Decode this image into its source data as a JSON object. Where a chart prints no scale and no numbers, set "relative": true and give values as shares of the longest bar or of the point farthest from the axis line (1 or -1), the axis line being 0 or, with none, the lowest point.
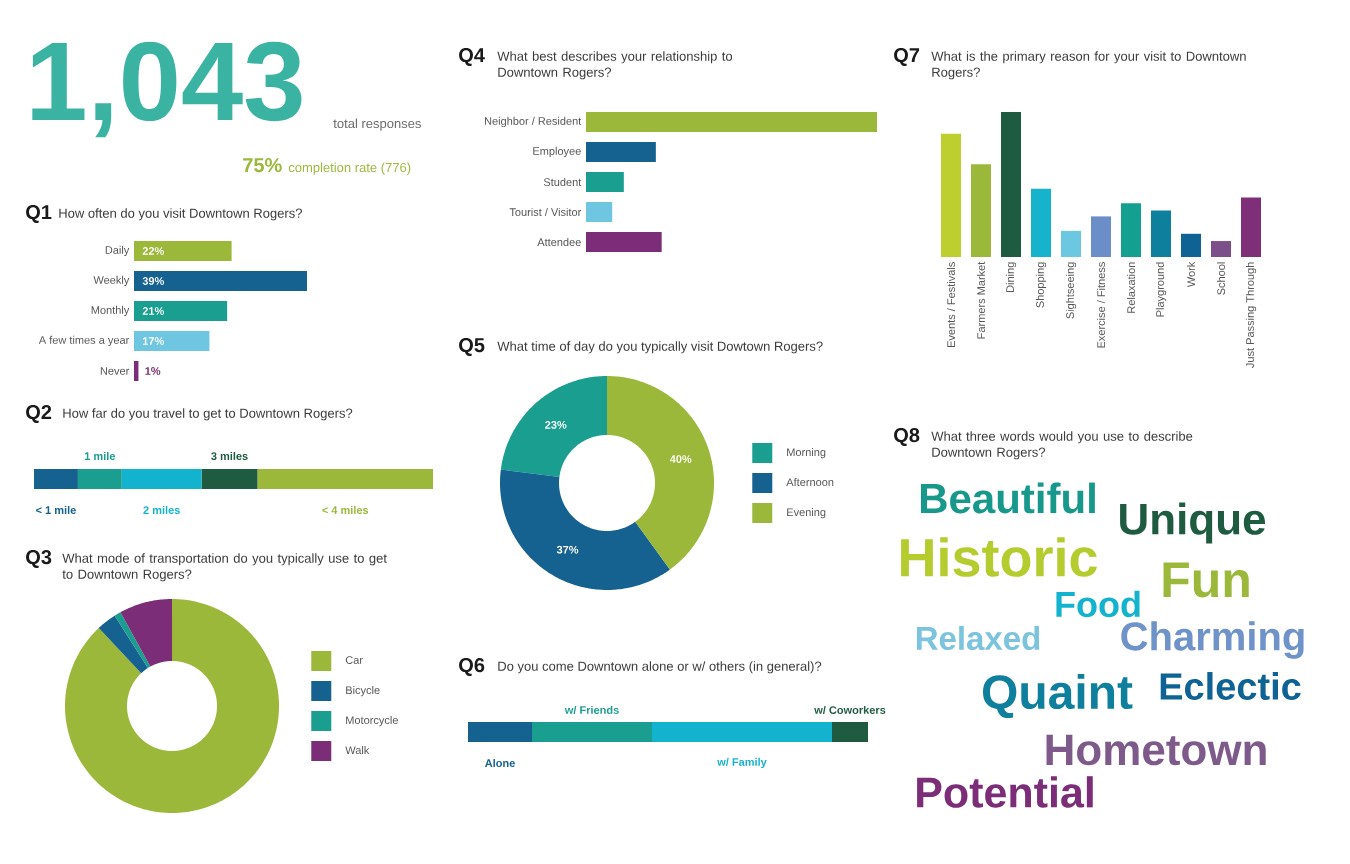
{
  "chart_data": [
    {
      "type": "other",
      "title": "1,043",
      "annotations": [
        "total responses",
        "75%",
        "completion rate (776)"
      ]
    },
    {
      "type": "bar",
      "orientation": "horizontal",
      "title": "Q1",
      "subtitle": "How often do you visit Downtown Rogers?",
      "categories": [
        "Daily",
        "Weekly",
        "Monthly",
        "A few times a year",
        "Never"
      ],
      "values": [
        22,
        39,
        21,
        17,
        1
      ],
      "colors": [
        "#9bb83a",
        "#15618f",
        "#1a9e8f",
        "#6fc6e0",
        "#7b2d78"
      ],
      "value_labels": [
        "22%",
        "39%",
        "21%",
        "17%",
        "1%"
      ]
    },
    {
      "type": "bar",
      "orientation": "horizontal",
      "stacked": true,
      "relative": true,
      "title": "Q2",
      "subtitle": "How far do you travel to get to Downtown Rogers?",
      "categories": [
        null
      ],
      "series": [
        {
          "name": "< 1 mile",
          "color": "#15618f",
          "values": [
            0.11
          ]
        },
        {
          "name": "1 mile",
          "color": "#1a9e8f",
          "values": [
            0.11
          ]
        },
        {
          "name": "2 miles",
          "color": "#13b3cf",
          "values": [
            0.2
          ]
        },
        {
          "name": "3 miles",
          "color": "#1e5b40",
          "values": [
            0.14
          ]
        },
        {
          "name": "< 4 miles",
          "color": "#9bb83a",
          "values": [
            0.44
          ]
        }
      ]
    },
    {
      "type": "donut",
      "title": "Q3",
      "subtitle": "What mode of transportation do you typically use to get to Downtown Rogers?",
      "categories": [
        "Car",
        "Bicycle",
        "Motorcycle",
        "Walk"
      ],
      "values": [
        88,
        3,
        1,
        8
      ],
      "colors": [
        "#9bb83a",
        "#15618f",
        "#1a9e8f",
        "#7b2d78"
      ],
      "legend": "right"
    },
    {
      "type": "bar",
      "orientation": "horizontal",
      "relative": true,
      "title": "Q4",
      "subtitle": "What best describes your relationship to Downtown Rogers?",
      "categories": [
        "Neighbor / Resident",
        "Employee",
        "Student",
        "Tourist / Visitor",
        "Attendee"
      ],
      "values": [
        1,
        0.24,
        0.13,
        0.09,
        0.26
      ],
      "colors": [
        "#9bb83a",
        "#15618f",
        "#1a9e8f",
        "#6fc6e0",
        "#7b2d78"
      ]
    },
    {
      "type": "donut",
      "title": "Q5",
      "subtitle": "What time of day do you typically visit Dowtown Rogers?",
      "categories": [
        "Morning",
        "Afternoon",
        "Evening"
      ],
      "values": [
        23,
        37,
        40
      ],
      "colors": [
        "#1a9e8f",
        "#15618f",
        "#9bb83a"
      ],
      "value_labels": [
        "23%",
        "37%",
        "40%"
      ],
      "legend": "right"
    },
    {
      "type": "bar",
      "orientation": "horizontal",
      "stacked": true,
      "relative": true,
      "title": "Q6",
      "subtitle": "Do you come Downtown alone or w/ others (in general)?",
      "categories": [
        null
      ],
      "series": [
        {
          "name": "Alone",
          "color": "#15618f",
          "values": [
            0.16
          ]
        },
        {
          "name": "w/ Friends",
          "color": "#1a9e8f",
          "values": [
            0.3
          ]
        },
        {
          "name": "w/ Family",
          "color": "#13b3cf",
          "values": [
            0.45
          ]
        },
        {
          "name": "w/ Coworkers",
          "color": "#1e5b40",
          "values": [
            0.09
          ]
        }
      ]
    },
    {
      "type": "bar",
      "relative": true,
      "title": "Q7",
      "subtitle": "What is the primary reason for your visit to Downtown Rogers?",
      "categories": [
        "Events / Festivals",
        "Farmers Market",
        "Dining",
        "Shopping",
        "Sightseeing",
        "Exercise / Fitness",
        "Relaxation",
        "Playground",
        "Work",
        "School",
        "Just Passing Through"
      ],
      "values": [
        0.85,
        0.64,
        1,
        0.47,
        0.18,
        0.28,
        0.37,
        0.32,
        0.16,
        0.11,
        0.41
      ],
      "colors": [
        "#bccf2e",
        "#9bb83a",
        "#1e5b40",
        "#17b3cc",
        "#6cc7e0",
        "#6b8ec9",
        "#14a091",
        "#0e7f9c",
        "#0e6394",
        "#7d4f8a",
        "#7e2f78"
      ]
    },
    {
      "type": "other",
      "title": "Q8",
      "subtitle": "What three words would you use to describe Downtown Rogers?",
      "annotations": [
        "Beautiful",
        "Unique",
        "Historic",
        "Fun",
        "Food",
        "Relaxed",
        "Charming",
        "Quaint",
        "Eclectic",
        "Hometown",
        "Potential"
      ],
      "colors": [
        "#17988a",
        "#1e5b40",
        "#b5cc2e",
        "#9bb83a",
        "#13b3cf",
        "#7cc3dd",
        "#6f93c9",
        "#0e7f9c",
        "#0e6394",
        "#7d5a8a",
        "#7b2d78"
      ]
    }
  ]
}
